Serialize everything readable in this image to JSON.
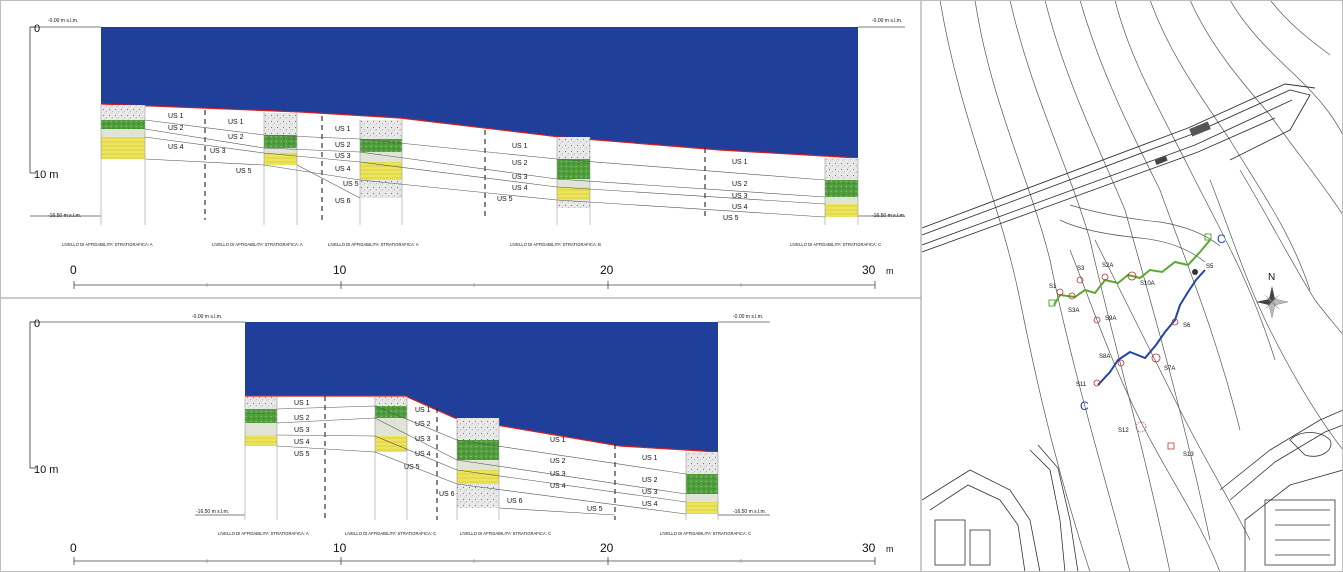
{
  "top_section": {
    "depth_axis": {
      "zero": "0",
      "ten": "10 m"
    },
    "level_left_top": "-0.00 m s.l.m.",
    "level_right_top": "-0.00 m s.l.m.",
    "level_left_bottom": "-16.50 m s.l.m.",
    "level_right_bottom": "-16.50 m s.l.m.",
    "distance_axis": {
      "d0": "0",
      "d10": "10",
      "d20": "20",
      "d30": "30",
      "unit": "m"
    },
    "reliability": [
      "LIVELLO DI AFFIDABILITA' STRATIGRAFICA: A",
      "LIVELLO DI AFFIDABILITA' STRATIGRAFICA: A",
      "LIVELLO DI AFFIDABILITA' STRATIGRAFICA: A",
      "LIVELLO DI AFFIDABILITA' STRATIGRAFICA: B",
      "LIVELLO DI AFFIDABILITA' STRATIGRAFICA: C"
    ],
    "units": [
      {
        "label": "US 1"
      },
      {
        "label": "US 2"
      },
      {
        "label": "US 4"
      },
      {
        "label": "US 1"
      },
      {
        "label": "US 2"
      },
      {
        "label": "US 3"
      },
      {
        "label": "US 5"
      },
      {
        "label": "US 1"
      },
      {
        "label": "US 2"
      },
      {
        "label": "US 3"
      },
      {
        "label": "US 4"
      },
      {
        "label": "US 5"
      },
      {
        "label": "US 6"
      },
      {
        "label": "US 1"
      },
      {
        "label": "US 2"
      },
      {
        "label": "US 3"
      },
      {
        "label": "US 4"
      },
      {
        "label": "US 5"
      },
      {
        "label": "US 1"
      },
      {
        "label": "US 2"
      },
      {
        "label": "US 3"
      },
      {
        "label": "US 4"
      },
      {
        "label": "US 5"
      }
    ]
  },
  "bottom_section": {
    "depth_axis": {
      "zero": "0",
      "ten": "10 m"
    },
    "level_left_top": "-0.00 m s.l.m.",
    "level_right_top": "-0.00 m s.l.m.",
    "level_left_bottom": "-16.50 m s.l.m.",
    "level_right_bottom": "-16.50 m s.l.m.",
    "distance_axis": {
      "d0": "0",
      "d10": "10",
      "d20": "20",
      "d30": "30",
      "unit": "m"
    },
    "reliability": [
      "LIVELLO DI AFFIDABILITA' STRATIGRAFICA: A",
      "LIVELLO DI AFFIDABILITA' STRATIGRAFICA: C",
      "LIVELLO DI AFFIDABILITA' STRATIGRAFICA: C",
      "LIVELLO DI AFFIDABILITA' STRATIGRAFICA: C"
    ],
    "units": [
      {
        "label": "US 1"
      },
      {
        "label": "US 2"
      },
      {
        "label": "US 3"
      },
      {
        "label": "US 4"
      },
      {
        "label": "US 5"
      },
      {
        "label": "US 1"
      },
      {
        "label": "US 2"
      },
      {
        "label": "US 3"
      },
      {
        "label": "US 4"
      },
      {
        "label": "US 5"
      },
      {
        "label": "US 6"
      },
      {
        "label": "US 1"
      },
      {
        "label": "US 2"
      },
      {
        "label": "US 3"
      },
      {
        "label": "US 4"
      },
      {
        "label": "US 6"
      },
      {
        "label": "US 1"
      },
      {
        "label": "US 2"
      },
      {
        "label": "US 3"
      },
      {
        "label": "US 4"
      },
      {
        "label": "US 5"
      }
    ]
  },
  "map": {
    "north": "N",
    "section_markers": [
      "C",
      "C"
    ],
    "boreholes": [
      "S1",
      "S3",
      "S2A",
      "S10A",
      "S5",
      "S3A",
      "S9A",
      "S6",
      "S8A",
      "S7A",
      "S11",
      "S12",
      "S13"
    ]
  },
  "colors": {
    "water": "#1f3f9a",
    "seabed": "#d31f1f",
    "green_layer": "#4f9d3c",
    "yellow_layer": "#e7df52",
    "light_layer": "#dfe4d6",
    "speckle_layer": "#cfcfcf",
    "green_route": "#5aa832",
    "blue_route": "#2444a6"
  }
}
